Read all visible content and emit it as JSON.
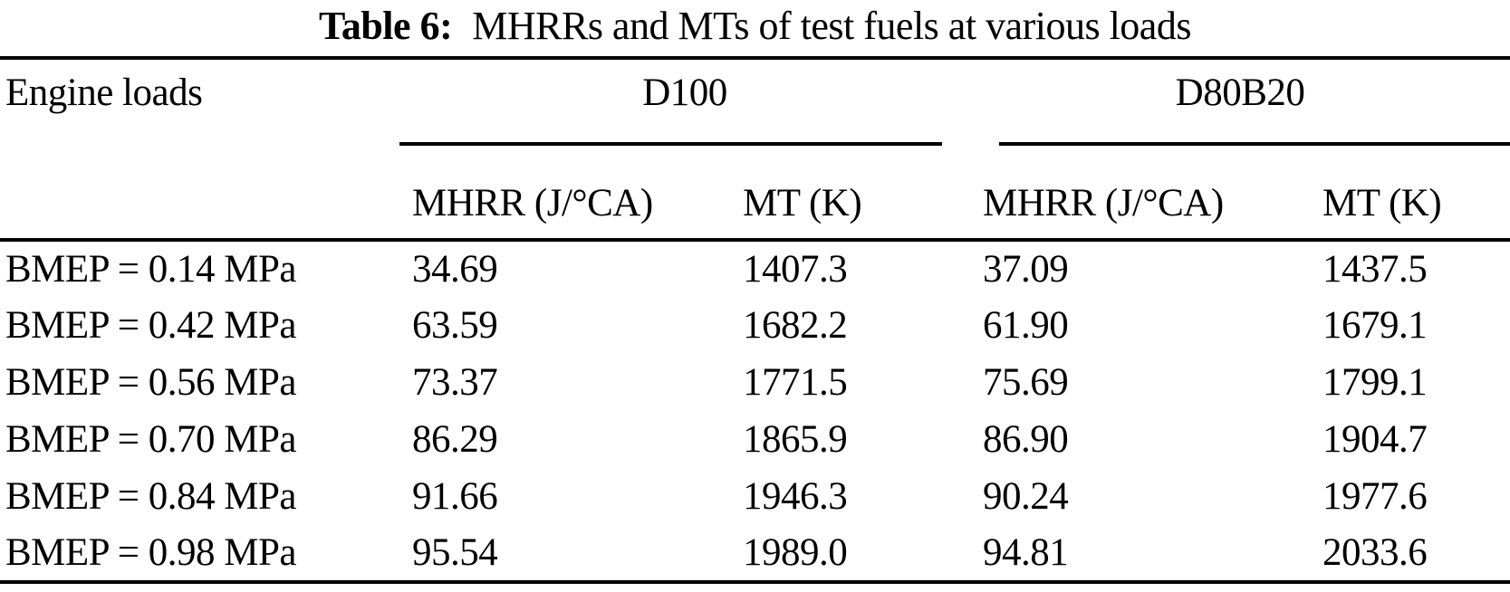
{
  "page": {
    "background_color": "#ffffff",
    "text_color": "#000000"
  },
  "title": {
    "label": "Table 6:",
    "text": "MHRRs and MTs of test fuels at various loads"
  },
  "table": {
    "row_header": "Engine loads",
    "groups": [
      {
        "name": "D100",
        "columns": [
          "MHRR (J/°CA)",
          "MT (K)"
        ]
      },
      {
        "name": "D80B20",
        "columns": [
          "MHRR (J/°CA)",
          "MT (K)"
        ]
      }
    ],
    "rows": [
      {
        "load": "BMEP = 0.14 MPa",
        "values": [
          "34.69",
          "1407.3",
          "37.09",
          "1437.5"
        ]
      },
      {
        "load": "BMEP = 0.42 MPa",
        "values": [
          "63.59",
          "1682.2",
          "61.90",
          "1679.1"
        ]
      },
      {
        "load": "BMEP = 0.56 MPa",
        "values": [
          "73.37",
          "1771.5",
          "75.69",
          "1799.1"
        ]
      },
      {
        "load": "BMEP = 0.70 MPa",
        "values": [
          "86.29",
          "1865.9",
          "86.90",
          "1904.7"
        ]
      },
      {
        "load": "BMEP = 0.84 MPa",
        "values": [
          "91.66",
          "1946.3",
          "90.24",
          "1977.6"
        ]
      },
      {
        "load": "BMEP = 0.98 MPa",
        "values": [
          "95.54",
          "1989.0",
          "94.81",
          "2033.6"
        ]
      }
    ]
  },
  "chart_data": {
    "type": "table",
    "title": "Table 6: MHRRs and MTs of test fuels at various loads",
    "row_header_label": "Engine loads",
    "column_groups": [
      "D100",
      "D80B20"
    ],
    "columns": [
      "D100 MHRR (J/°CA)",
      "D100 MT (K)",
      "D80B20 MHRR (J/°CA)",
      "D80B20 MT (K)"
    ],
    "bmep_mpa": [
      0.14,
      0.42,
      0.56,
      0.7,
      0.84,
      0.98
    ],
    "series": [
      {
        "name": "D100 MHRR (J/°CA)",
        "values": [
          34.69,
          63.59,
          73.37,
          86.29,
          91.66,
          95.54
        ]
      },
      {
        "name": "D100 MT (K)",
        "values": [
          1407.3,
          1682.2,
          1771.5,
          1865.9,
          1946.3,
          1989.0
        ]
      },
      {
        "name": "D80B20 MHRR (J/°CA)",
        "values": [
          37.09,
          61.9,
          75.69,
          86.9,
          90.24,
          94.81
        ]
      },
      {
        "name": "D80B20 MT (K)",
        "values": [
          1437.5,
          1679.1,
          1799.1,
          1904.7,
          1977.6,
          2033.6
        ]
      }
    ]
  }
}
